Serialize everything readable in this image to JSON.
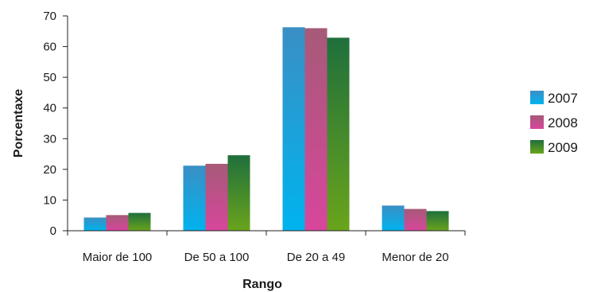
{
  "chart_data": {
    "type": "bar",
    "title": "",
    "xlabel": "Rango",
    "ylabel": "Porcentaxe",
    "categories": [
      "Maior de 100",
      "De 50 a 100",
      "De 20 a 49",
      "Menor de 20"
    ],
    "series": [
      {
        "name": "2007",
        "values": [
          4.3,
          21.2,
          66.3,
          8.2
        ]
      },
      {
        "name": "2008",
        "values": [
          5.1,
          21.8,
          66.0,
          7.1
        ]
      },
      {
        "name": "2009",
        "values": [
          5.8,
          24.6,
          62.9,
          6.4
        ]
      }
    ],
    "ylim": [
      0,
      70
    ],
    "yticks": [
      "0",
      "10",
      "20",
      "30",
      "40",
      "50",
      "60",
      "70"
    ],
    "grid": false,
    "legend_position": "right",
    "colors": {
      "2007": [
        "#3a8fc4",
        "#00b3ee"
      ],
      "2008": [
        "#a65a78",
        "#d8469c"
      ],
      "2009": [
        "#1f6f3c",
        "#6aa41c"
      ]
    }
  }
}
